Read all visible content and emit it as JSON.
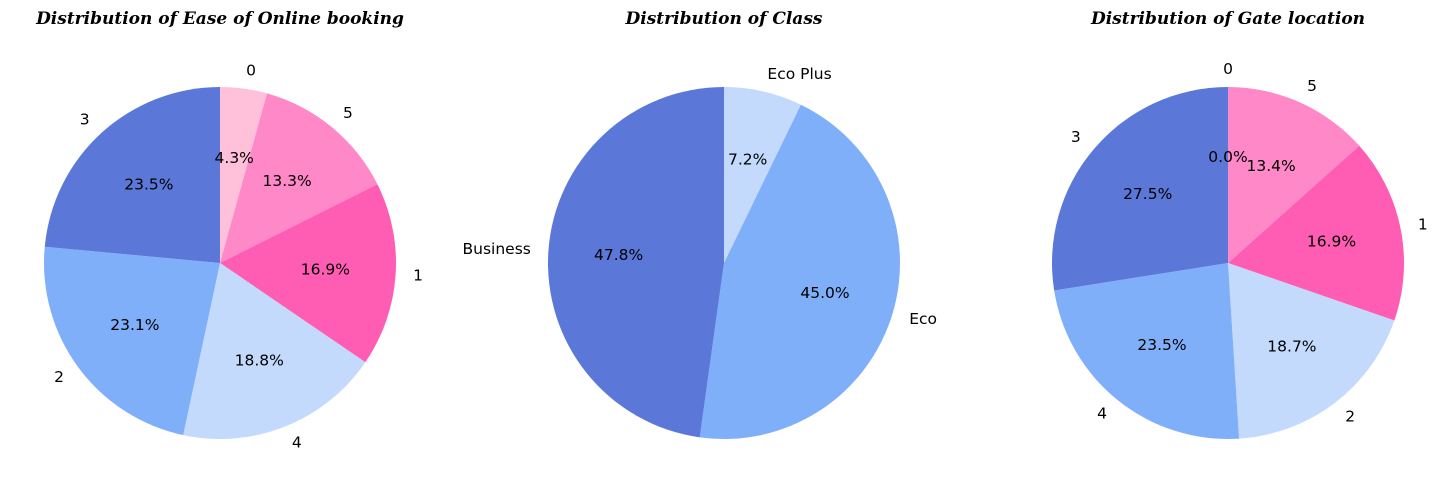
{
  "chart_data": [
    {
      "type": "pie",
      "title": "Distribution of Ease of Online booking",
      "labels": [
        "0",
        "5",
        "1",
        "4",
        "2",
        "3"
      ],
      "values": [
        4.3,
        13.3,
        16.9,
        18.8,
        23.1,
        23.5
      ],
      "value_labels": [
        "4.3%",
        "13.3%",
        "16.9%",
        "18.8%",
        "23.1%",
        "23.5%"
      ],
      "colors": [
        "#ffc1da",
        "#ff88c8",
        "#ff5db3",
        "#c3dafd",
        "#80affa",
        "#5b78d8"
      ],
      "start_angle": 90,
      "direction": "clockwise",
      "legend": "none"
    },
    {
      "type": "pie",
      "title": "Distribution of Class",
      "labels": [
        "Eco Plus",
        "Eco",
        "Business"
      ],
      "values": [
        7.2,
        45.0,
        47.8
      ],
      "value_labels": [
        "7.2%",
        "45.0%",
        "47.8%"
      ],
      "colors": [
        "#c3dafd",
        "#80affa",
        "#5b78d8"
      ],
      "start_angle": 90,
      "direction": "clockwise",
      "legend": "none"
    },
    {
      "type": "pie",
      "title": "Distribution of Gate location",
      "labels": [
        "0",
        "5",
        "1",
        "2",
        "4",
        "3"
      ],
      "values": [
        0.0,
        13.4,
        16.9,
        18.7,
        23.5,
        27.5
      ],
      "value_labels": [
        "0.0%",
        "13.4%",
        "16.9%",
        "18.7%",
        "23.5%",
        "27.5%"
      ],
      "colors": [
        "#ffc1da",
        "#ff88c8",
        "#ff5db3",
        "#c3dafd",
        "#80affa",
        "#5b78d8"
      ],
      "start_angle": 90,
      "direction": "clockwise",
      "legend": "none"
    }
  ]
}
